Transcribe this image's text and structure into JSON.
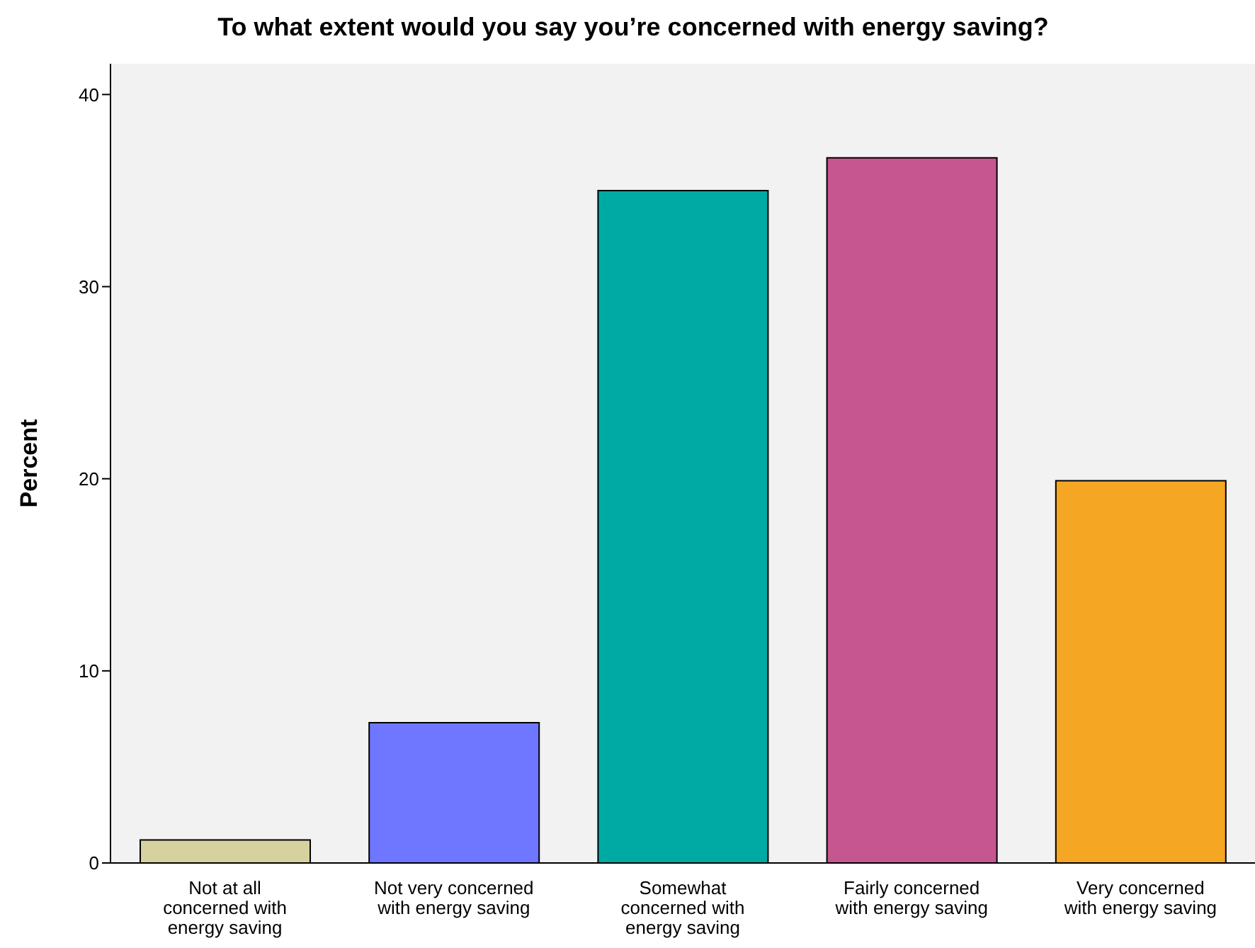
{
  "chart_data": {
    "type": "bar",
    "title": "To what extent would you say you’re concerned with energy saving?",
    "ylabel": "Percent",
    "categories": [
      "Not at all\nconcerned with\nenergy saving",
      "Not very concerned\nwith energy saving",
      "Somewhat\nconcerned with\nenergy saving",
      "Fairly concerned\nwith energy saving",
      "Very concerned\nwith energy saving"
    ],
    "values": [
      1.2,
      7.3,
      35.0,
      36.7,
      19.9
    ],
    "colors": [
      "#d6d29f",
      "#6f76ff",
      "#00aaa4",
      "#c6568f",
      "#f5a623"
    ],
    "ylim": [
      0,
      41.6
    ],
    "yticks": [
      0,
      10,
      20,
      30,
      40
    ],
    "grid": false,
    "legend": false
  }
}
